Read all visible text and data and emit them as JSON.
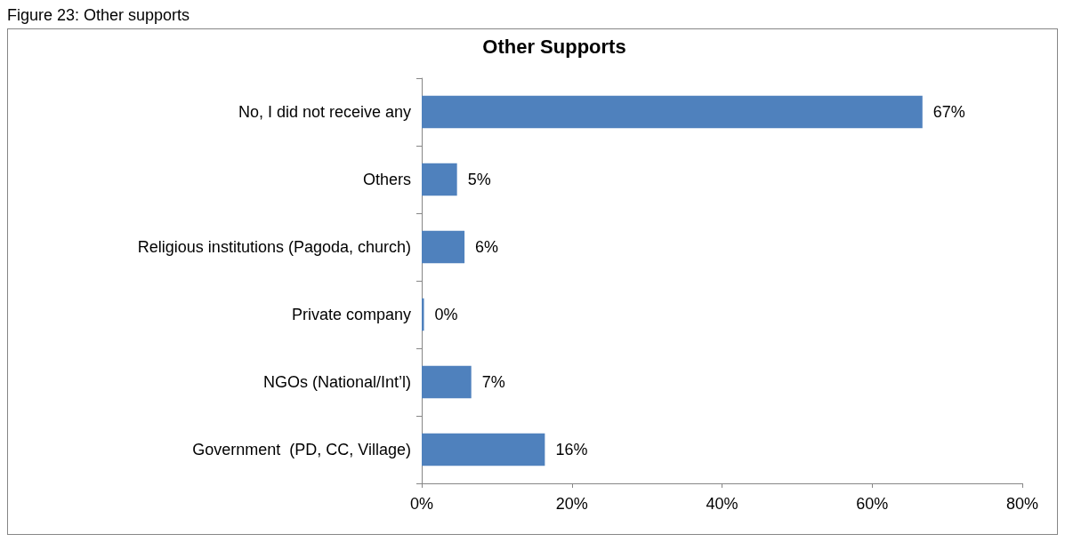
{
  "chart_data": {
    "type": "bar",
    "orientation": "horizontal",
    "title": "Other Supports",
    "annotations": [
      "Figure 23: Other supports"
    ],
    "categories": [
      "No, I did not receive any",
      "Others",
      "Religious institutions (Pagoda, church)",
      "Private company",
      "NGOs (National/Int’l)",
      "Government  (PD, CC, Village)"
    ],
    "values": [
      66.7,
      4.7,
      5.7,
      0.3,
      6.6,
      16.4
    ],
    "value_labels": [
      "67%",
      "5%",
      "6%",
      "0%",
      "7%",
      "16%"
    ],
    "color": "#4f81bd",
    "xlim": [
      0,
      80
    ],
    "xticks": [
      {
        "value": 0,
        "label": "0%"
      },
      {
        "value": 20,
        "label": "20%"
      },
      {
        "value": 40,
        "label": "40%"
      },
      {
        "value": 60,
        "label": "60%"
      },
      {
        "value": 80,
        "label": "80%"
      }
    ],
    "grid": false
  }
}
